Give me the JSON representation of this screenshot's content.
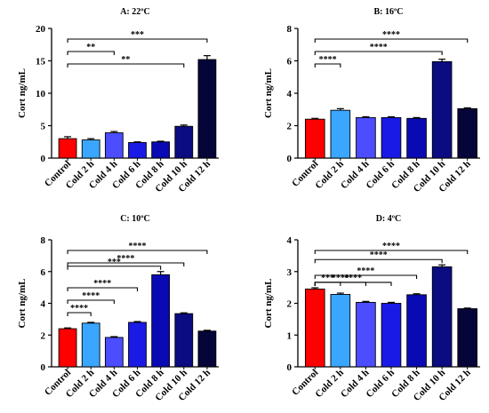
{
  "chart_data": [
    {
      "type": "bar",
      "title": "A: 22ºC",
      "ylabel": "Cort ng/mL",
      "xlabel": "",
      "ylim": [
        0,
        20
      ],
      "yticks": [
        "0",
        "5",
        "10",
        "15",
        "20"
      ],
      "categories": [
        "Control",
        "Cold 2 h",
        "Cold 4 h",
        "Cold 6 h",
        "Cold 8 h",
        "Cold 10 h",
        "Cold 12 h"
      ],
      "values": [
        3.0,
        2.8,
        3.9,
        2.4,
        2.5,
        4.9,
        15.2
      ],
      "errors": [
        0.3,
        0.2,
        0.2,
        0.1,
        0.1,
        0.2,
        0.6
      ],
      "significance": [
        {
          "from": "Control",
          "to": "Cold 12 h",
          "label": "***"
        },
        {
          "from": "Control",
          "to": "Cold 4 h",
          "label": "**"
        },
        {
          "from": "Control",
          "to": "Cold 10 h",
          "label": "**"
        }
      ]
    },
    {
      "type": "bar",
      "title": "B: 16ºC",
      "ylabel": "Cort ng/mL",
      "xlabel": "",
      "ylim": [
        0,
        8
      ],
      "yticks": [
        "0",
        "2",
        "4",
        "6",
        "8"
      ],
      "categories": [
        "Control",
        "Cold 2 h",
        "Cold 4 h",
        "Cold 6 h",
        "Cold 8 h",
        "Cold 10 h",
        "Cold 12 h"
      ],
      "values": [
        2.4,
        2.95,
        2.5,
        2.5,
        2.45,
        5.95,
        3.05
      ],
      "errors": [
        0.05,
        0.1,
        0.05,
        0.05,
        0.05,
        0.15,
        0.05
      ],
      "significance": [
        {
          "from": "Control",
          "to": "Cold 12 h",
          "label": "****"
        },
        {
          "from": "Control",
          "to": "Cold 10 h",
          "label": "****"
        },
        {
          "from": "Control",
          "to": "Cold 2 h",
          "label": "****"
        }
      ]
    },
    {
      "type": "bar",
      "title": "C: 10ºC",
      "ylabel": "Cort ng/mL",
      "xlabel": "",
      "ylim": [
        0,
        8
      ],
      "yticks": [
        "0",
        "2",
        "4",
        "6",
        "8"
      ],
      "categories": [
        "Control",
        "Cold 2 h",
        "Cold 4 h",
        "Cold 6 h",
        "Cold 8 h",
        "Cold 10 h",
        "Cold 12 h"
      ],
      "values": [
        2.4,
        2.75,
        1.85,
        2.8,
        5.8,
        3.35,
        2.25
      ],
      "errors": [
        0.05,
        0.05,
        0.05,
        0.05,
        0.2,
        0.05,
        0.05
      ],
      "significance": [
        {
          "from": "Control",
          "to": "Cold 12 h",
          "label": "****"
        },
        {
          "from": "Control",
          "to": "Cold 10 h",
          "label": "****"
        },
        {
          "from": "Control",
          "to": "Cold 8 h",
          "label": "***"
        },
        {
          "from": "Control",
          "to": "Cold 6 h",
          "label": "****"
        },
        {
          "from": "Control",
          "to": "Cold 4 h",
          "label": "****"
        },
        {
          "from": "Control",
          "to": "Cold 2 h",
          "label": "****"
        }
      ]
    },
    {
      "type": "bar",
      "title": "D: 4ºC",
      "ylabel": "Cort ng/mL",
      "xlabel": "",
      "ylim": [
        0,
        4
      ],
      "yticks": [
        "0",
        "1",
        "2",
        "3",
        "4"
      ],
      "categories": [
        "Control",
        "Cold 2 h",
        "Cold 4 h",
        "Cold 6 h",
        "Cold 8 h",
        "Cold 10 h",
        "Cold 12 h"
      ],
      "values": [
        2.45,
        2.28,
        2.03,
        2.0,
        2.27,
        3.15,
        1.83
      ],
      "errors": [
        0.04,
        0.04,
        0.03,
        0.03,
        0.03,
        0.06,
        0.02
      ],
      "significance": [
        {
          "from": "Control",
          "to": "Cold 12 h",
          "label": "****"
        },
        {
          "from": "Control",
          "to": "Cold 10 h",
          "label": "****"
        },
        {
          "from": "Control",
          "to": "Cold 8 h",
          "label": "****"
        },
        {
          "from": "Control",
          "to": "Cold 6 h",
          "label": "****"
        },
        {
          "from": "Control",
          "to": "Cold 4 h",
          "label": "****"
        },
        {
          "from": "Control",
          "to": "Cold 2 h",
          "label": "***"
        }
      ]
    }
  ],
  "colors": {
    "bars": [
      "#ff0000",
      "#3aa6ff",
      "#4b4dff",
      "#1a1ae6",
      "#0a0ab4",
      "#0b0b82",
      "#05053a"
    ],
    "axis": "#000000"
  }
}
